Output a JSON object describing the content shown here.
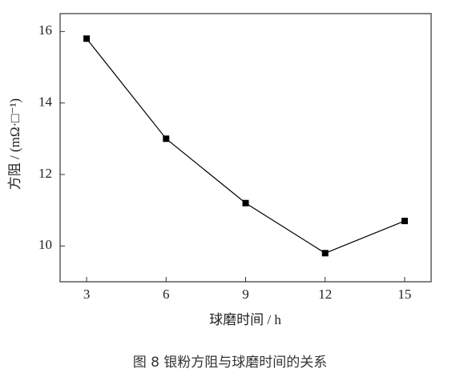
{
  "chart_data": {
    "type": "line",
    "caption": "图 8 银粉方阻与球磨时间的关系",
    "x_label": "球磨时间 / h",
    "y_label": "方阻 / (mΩ·□⁻¹)",
    "x": [
      3,
      6,
      9,
      12,
      15
    ],
    "series": [
      {
        "color": "#000000",
        "values": [
          15.8,
          13.0,
          11.2,
          9.8,
          10.7
        ]
      }
    ],
    "xlim": [
      2,
      16
    ],
    "xticks": [
      3,
      6,
      9,
      12,
      15
    ],
    "ylim": [
      9,
      16.5
    ],
    "yticks": [
      10,
      12,
      14,
      16
    ]
  }
}
